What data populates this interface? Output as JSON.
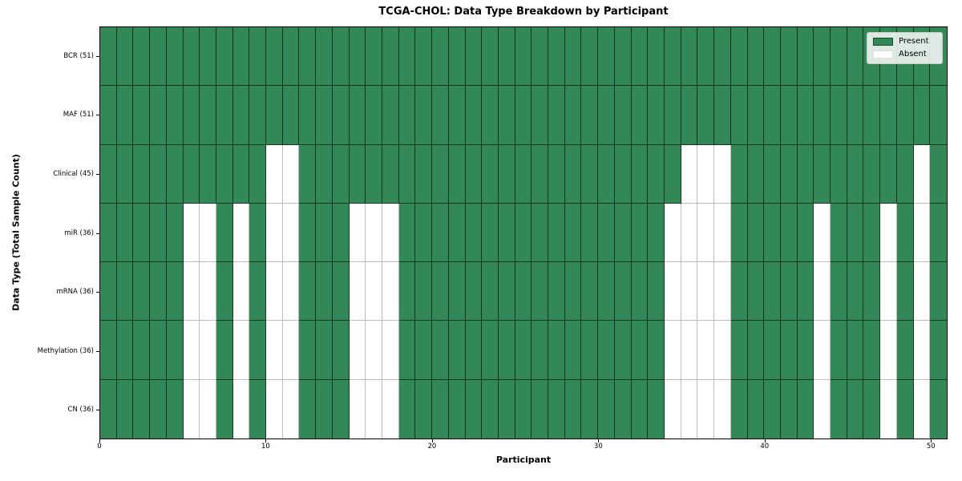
{
  "title": "TCGA-CHOL: Data Type Breakdown by Participant",
  "axes": {
    "xlabel": "Participant",
    "ylabel": "Data Type (Total Sample Count)"
  },
  "legend": {
    "items": [
      {
        "label": "Present",
        "color": "#338857",
        "edge": "rgba(0,0,0,0.45)"
      },
      {
        "label": "Absent",
        "color": "#ffffff",
        "edge": "#e0e0e0"
      }
    ]
  },
  "colors": {
    "present": "#338857",
    "absent": "#ffffff",
    "present_edge": "rgba(0,0,0,0.60)",
    "absent_edge": "#bcbcbc",
    "spine": "#000000"
  },
  "chart_data": {
    "type": "heatmap",
    "title": "TCGA-CHOL: Data Type Breakdown by Participant",
    "xlabel": "Participant",
    "ylabel": "Data Type (Total Sample Count)",
    "n_participants": 51,
    "x_ticks": [
      0,
      10,
      20,
      30,
      40,
      50
    ],
    "xlim": [
      0,
      51
    ],
    "grid": true,
    "legend_position": "upper right",
    "cell_states": [
      "Present",
      "Absent"
    ],
    "rows": [
      {
        "label": "BCR (51)",
        "name": "BCR",
        "present_count": 51,
        "absent_participants": []
      },
      {
        "label": "MAF (51)",
        "name": "MAF",
        "present_count": 51,
        "absent_participants": []
      },
      {
        "label": "Clinical (45)",
        "name": "Clinical",
        "present_count": 45,
        "absent_participants": [
          10,
          11,
          35,
          36,
          37,
          49
        ]
      },
      {
        "label": "miR (36)",
        "name": "miR",
        "present_count": 36,
        "absent_participants": [
          5,
          6,
          8,
          10,
          11,
          15,
          16,
          17,
          34,
          35,
          36,
          37,
          43,
          47,
          49
        ]
      },
      {
        "label": "mRNA (36)",
        "name": "mRNA",
        "present_count": 36,
        "absent_participants": [
          5,
          6,
          8,
          10,
          11,
          15,
          16,
          17,
          34,
          35,
          36,
          37,
          43,
          47,
          49
        ]
      },
      {
        "label": "Methylation (36)",
        "name": "Methylation",
        "present_count": 36,
        "absent_participants": [
          5,
          6,
          8,
          10,
          11,
          15,
          16,
          17,
          34,
          35,
          36,
          37,
          43,
          47,
          49
        ]
      },
      {
        "label": "CN (36)",
        "name": "CN",
        "present_count": 36,
        "absent_participants": [
          5,
          6,
          8,
          10,
          11,
          15,
          16,
          17,
          34,
          35,
          36,
          37,
          43,
          47,
          49
        ]
      }
    ]
  }
}
